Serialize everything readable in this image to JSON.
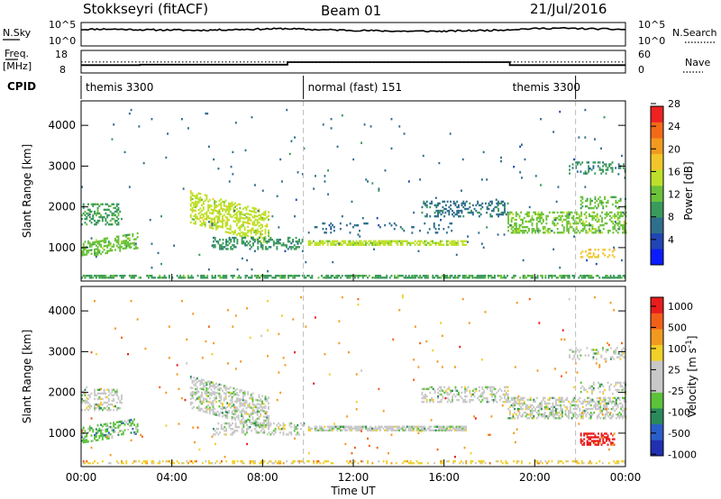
{
  "header": {
    "station": "Stokkseyri (fitACF)",
    "beam": "Beam 01",
    "date": "21/Jul/2016"
  },
  "chart_data": [
    {
      "type": "line",
      "panel": "noise",
      "left_label": "N.Sky",
      "right_label": "N.Search",
      "y_ticks": [
        "10^5",
        "10^0"
      ],
      "right_ticks": [
        "10^5",
        "10^0"
      ],
      "x": [
        0,
        1,
        2,
        3,
        4,
        5,
        6,
        7,
        8,
        9,
        10,
        11,
        12,
        13,
        14,
        15,
        16,
        17,
        18,
        19,
        20,
        21,
        22,
        23,
        24
      ],
      "values": [
        3.6,
        3.7,
        3.6,
        3.5,
        3.5,
        3.4,
        3.5,
        3.6,
        3.7,
        3.8,
        3.6,
        3.5,
        3.4,
        3.3,
        3.2,
        3.2,
        3.2,
        3.3,
        3.4,
        3.6,
        3.8,
        3.9,
        3.8,
        3.7,
        3.6
      ],
      "ylim": [
        0,
        5
      ]
    },
    {
      "type": "line",
      "panel": "frequency",
      "left_label_1": "Freq.",
      "left_label_2": "[MHz]",
      "right_label": "Nave",
      "left_ticks": [
        "18",
        "8"
      ],
      "right_ticks": [
        "60",
        "0"
      ],
      "freq_x": [
        0,
        2.6,
        2.6,
        9.1,
        9.1,
        18.9,
        18.9,
        24
      ],
      "freq_values": [
        11.2,
        11.2,
        11.4,
        11.4,
        12.6,
        12.6,
        11.2,
        11.2
      ],
      "freq_ylim": [
        8,
        18
      ],
      "nave_x": [
        0,
        24
      ],
      "nave_values": [
        28,
        28
      ],
      "nave_ylim": [
        0,
        60
      ]
    },
    {
      "type": "table",
      "panel": "cpid",
      "label": "CPID",
      "segments": [
        {
          "name": "themis 3300",
          "start": 0,
          "end": 9.8
        },
        {
          "name": "normal (fast) 151",
          "start": 9.8,
          "end": 21.8
        },
        {
          "name": "themis 3300",
          "start": 21.8,
          "end": 24
        }
      ]
    },
    {
      "type": "heatmap",
      "panel": "power",
      "ylabel": "Slant Range [km]",
      "yticks": [
        1000,
        2000,
        3000,
        4000
      ],
      "ylim": [
        180,
        4600
      ],
      "xlim": [
        0,
        24
      ],
      "colorbar_label": "Power [dB]",
      "colorbar_ticks": [
        4,
        8,
        12,
        16,
        20,
        24,
        28
      ],
      "colorbar_colors": [
        "#0a1cff",
        "#2045b4",
        "#2f6e8c",
        "#3a9a5c",
        "#6cc23a",
        "#bfe02a",
        "#f2c62a",
        "#f29a20",
        "#f26a18",
        "#ee2222"
      ],
      "bands": [
        {
          "t0": 0.0,
          "t1": 1.8,
          "r0": 1550,
          "r1": 2050,
          "slope": 0,
          "density": 0.35,
          "level": 10
        },
        {
          "t0": 0.0,
          "t1": 2.5,
          "r0": 750,
          "r1": 1150,
          "slope": 90,
          "density": 0.4,
          "level": 12
        },
        {
          "t0": 4.8,
          "t1": 8.3,
          "r0": 1600,
          "r1": 2400,
          "slope": -150,
          "density": 0.45,
          "level": 15
        },
        {
          "t0": 5.8,
          "t1": 9.8,
          "r0": 950,
          "r1": 1250,
          "slope": 0,
          "density": 0.35,
          "level": 8
        },
        {
          "t0": 10.0,
          "t1": 17.0,
          "r0": 1050,
          "r1": 1150,
          "slope": 0,
          "density": 0.75,
          "level": 14
        },
        {
          "t0": 10.0,
          "t1": 16.5,
          "r0": 1350,
          "r1": 1600,
          "slope": 0,
          "density": 0.12,
          "level": 6
        },
        {
          "t0": 15.0,
          "t1": 18.8,
          "r0": 1750,
          "r1": 2150,
          "slope": 0,
          "density": 0.35,
          "level": 7
        },
        {
          "t0": 18.8,
          "t1": 24.0,
          "r0": 1350,
          "r1": 1850,
          "slope": 0,
          "density": 0.45,
          "level": 13
        },
        {
          "t0": 22.0,
          "t1": 24.0,
          "r0": 1950,
          "r1": 2250,
          "slope": 0,
          "density": 0.3,
          "level": 11
        },
        {
          "t0": 21.5,
          "t1": 24.0,
          "r0": 2800,
          "r1": 3100,
          "slope": 0,
          "density": 0.25,
          "level": 8
        },
        {
          "t0": 22.0,
          "t1": 23.5,
          "r0": 750,
          "r1": 950,
          "slope": 0,
          "density": 0.35,
          "level": 18
        },
        {
          "t0": 0.0,
          "t1": 24.0,
          "r0": 200,
          "r1": 320,
          "slope": 0,
          "density": 0.6,
          "level": 10
        },
        {
          "t0": 0.0,
          "t1": 24.0,
          "r0": 400,
          "r1": 4400,
          "slope": 0,
          "density": 0.006,
          "level": 6
        }
      ]
    },
    {
      "type": "heatmap",
      "panel": "velocity",
      "ylabel": "Slant Range [km]",
      "yticks": [
        1000,
        2000,
        3000,
        4000
      ],
      "ylim": [
        180,
        4600
      ],
      "xlim": [
        0,
        24
      ],
      "xlabel": "Time UT",
      "xticks": [
        "00:00",
        "04:00",
        "08:00",
        "12:00",
        "16:00",
        "20:00",
        "00:00"
      ],
      "colorbar_label": "Velocity [m s^-1]",
      "colorbar_ticks": [
        "1000",
        "500",
        "100",
        "25",
        "-25",
        "-100",
        "-500",
        "-1000"
      ],
      "colorbar_colors": [
        "#2030b0",
        "#2a5fc8",
        "#2a8a5c",
        "#5cc23a",
        "#c8c8c8",
        "#c8c8c8",
        "#f2d02a",
        "#f29a20",
        "#f26018",
        "#e81c1c"
      ],
      "bands": [
        {
          "t0": 0.0,
          "t1": 1.8,
          "r0": 1550,
          "r1": 2050,
          "slope": 0,
          "density": 0.35,
          "level": 4
        },
        {
          "t0": 0.0,
          "t1": 2.5,
          "r0": 750,
          "r1": 1150,
          "slope": 90,
          "density": 0.45,
          "level": 3
        },
        {
          "t0": 4.8,
          "t1": 8.3,
          "r0": 1600,
          "r1": 2400,
          "slope": -150,
          "density": 0.5,
          "level": 4
        },
        {
          "t0": 5.8,
          "t1": 9.8,
          "r0": 950,
          "r1": 1250,
          "slope": 0,
          "density": 0.35,
          "level": 4
        },
        {
          "t0": 10.0,
          "t1": 17.0,
          "r0": 1050,
          "r1": 1150,
          "slope": 0,
          "density": 0.75,
          "level": 4
        },
        {
          "t0": 15.0,
          "t1": 18.8,
          "r0": 1750,
          "r1": 2150,
          "slope": 0,
          "density": 0.35,
          "level": 4
        },
        {
          "t0": 18.8,
          "t1": 24.0,
          "r0": 1350,
          "r1": 1850,
          "slope": 0,
          "density": 0.45,
          "level": 4
        },
        {
          "t0": 22.0,
          "t1": 24.0,
          "r0": 1950,
          "r1": 2250,
          "slope": 0,
          "density": 0.3,
          "level": 4
        },
        {
          "t0": 21.5,
          "t1": 24.0,
          "r0": 2800,
          "r1": 3100,
          "slope": 0,
          "density": 0.25,
          "level": 4
        },
        {
          "t0": 22.0,
          "t1": 23.5,
          "r0": 700,
          "r1": 1000,
          "slope": 0,
          "density": 0.45,
          "level": 9
        },
        {
          "t0": 0.0,
          "t1": 24.0,
          "r0": 200,
          "r1": 320,
          "slope": 0,
          "density": 0.35,
          "level": 6
        },
        {
          "t0": 0.0,
          "t1": 24.0,
          "r0": 400,
          "r1": 4400,
          "slope": 0,
          "density": 0.006,
          "level": 7
        }
      ]
    }
  ]
}
